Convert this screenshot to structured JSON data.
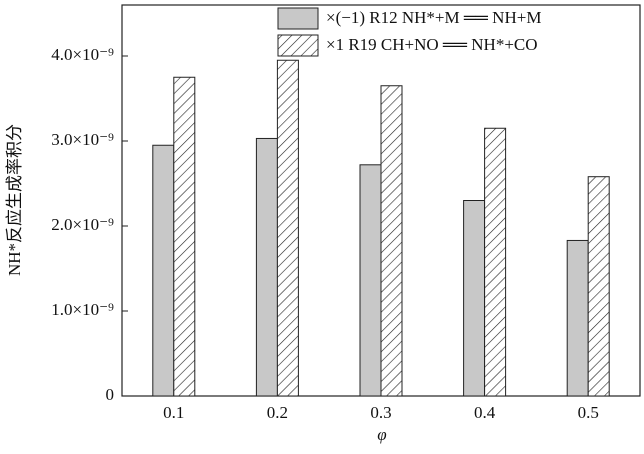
{
  "chart_data": {
    "type": "bar",
    "x_label": "φ",
    "y_label": "NH*反应生成率积分",
    "categories": [
      "0.1",
      "0.2",
      "0.3",
      "0.4",
      "0.5"
    ],
    "series": [
      {
        "name": "×(−1)  R12 NH*+M ══ NH+M",
        "color": "#c8c8c8",
        "hatch": false,
        "values": [
          2.95e-09,
          3.03e-09,
          2.72e-09,
          2.3e-09,
          1.83e-09
        ]
      },
      {
        "name": "×1     R19 CH+NO ══ NH*+CO",
        "color": "#ffffff",
        "hatch": true,
        "values": [
          3.75e-09,
          3.95e-09,
          3.65e-09,
          3.15e-09,
          2.58e-09
        ]
      }
    ],
    "ylim": [
      0,
      4.6e-09
    ],
    "yticks": [
      0,
      {
        "value": 1e-09,
        "label": "1.0×10⁻⁹"
      },
      {
        "value": 2e-09,
        "label": "2.0×10⁻⁹"
      },
      {
        "value": 3e-09,
        "label": "3.0×10⁻⁹"
      },
      {
        "value": 4e-09,
        "label": "4.0×10⁻⁹"
      }
    ],
    "legend": "top-right"
  }
}
